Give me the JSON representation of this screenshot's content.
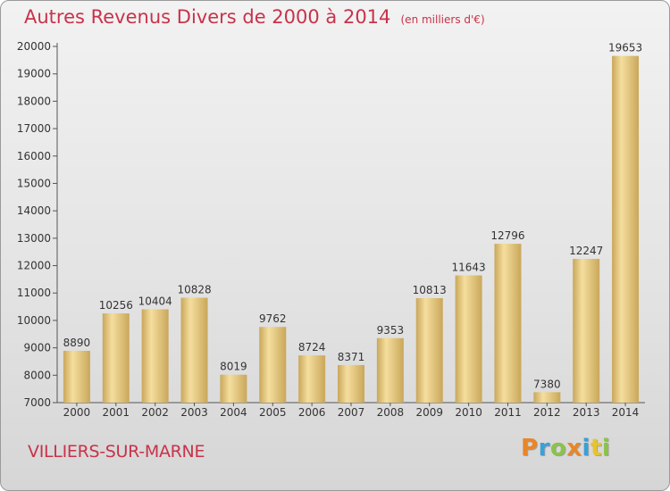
{
  "header": {
    "title": "Autres Revenus Divers de 2000 à 2014",
    "subtitle": "(en milliers d'€)"
  },
  "footer": {
    "city": "VILLIERS-SUR-MARNE",
    "logo_text": "Proxiti",
    "logo_colors": [
      "#e8862a",
      "#3aa0d8",
      "#8bc34a",
      "#e8862a",
      "#3aa0d8",
      "#e8c42a",
      "#8bc34a"
    ]
  },
  "colors": {
    "title": "#c8324a",
    "bar_light": "#f5de9e",
    "bar_dark": "#c9a75a"
  },
  "chart_data": {
    "type": "bar",
    "title": "Autres Revenus Divers de 2000 à 2014",
    "subtitle": "(en milliers d'€)",
    "categories": [
      "2000",
      "2001",
      "2002",
      "2003",
      "2004",
      "2005",
      "2006",
      "2007",
      "2008",
      "2009",
      "2010",
      "2011",
      "2012",
      "2013",
      "2014"
    ],
    "values": [
      8890,
      10256,
      10404,
      10828,
      8019,
      9762,
      8724,
      8371,
      9353,
      10813,
      11643,
      12796,
      7380,
      12247,
      19653
    ],
    "ylim": [
      7000,
      20000
    ],
    "yticks": [
      7000,
      8000,
      9000,
      10000,
      11000,
      12000,
      13000,
      14000,
      15000,
      16000,
      17000,
      18000,
      19000,
      20000
    ],
    "grid": false,
    "data_labels": true
  }
}
